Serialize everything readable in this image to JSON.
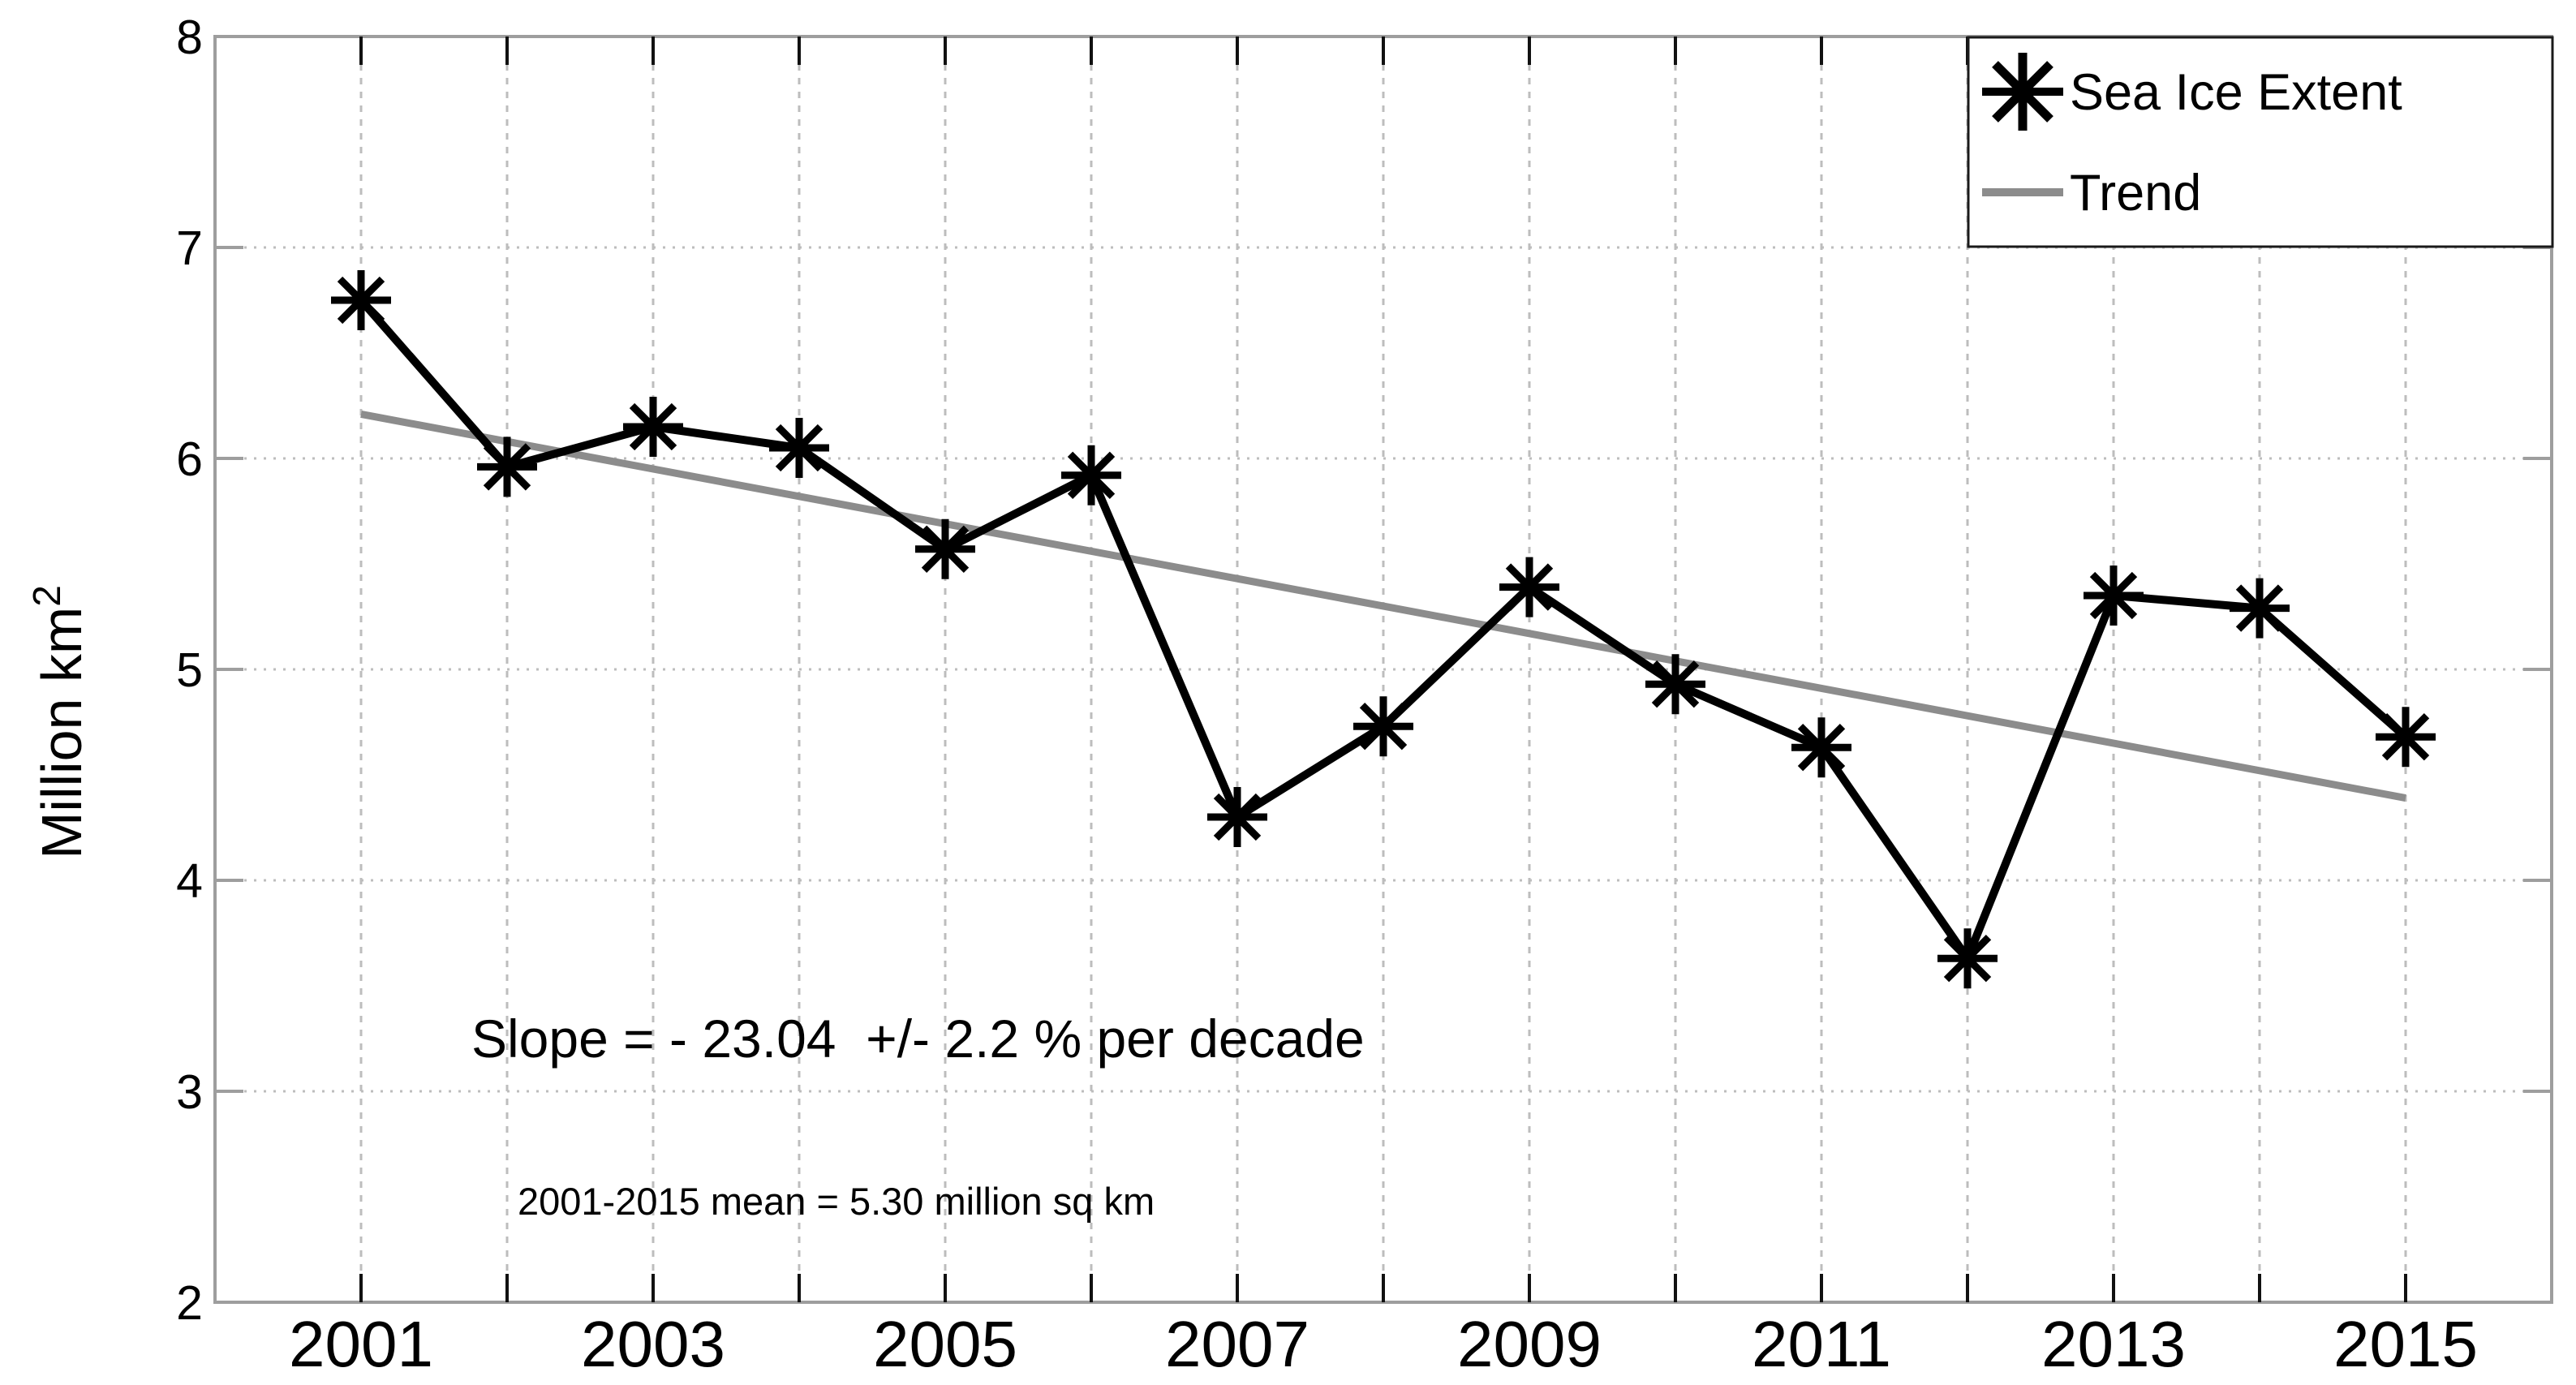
{
  "colors": {
    "background": "#ffffff",
    "axis_border": "#9e9e9e",
    "x_tick": "#111111",
    "y_tick": "#9e9e9e",
    "grid": "#bdbdbd",
    "data_line": "#000000",
    "trend_line": "#8c8c8c",
    "mean_text": "#4d4d4d",
    "legend_border": "#1a1a1a"
  },
  "chart_data": {
    "type": "line",
    "x": [
      2001,
      2002,
      2003,
      2004,
      2005,
      2006,
      2007,
      2008,
      2009,
      2010,
      2011,
      2012,
      2013,
      2014,
      2015
    ],
    "series": [
      {
        "name": "Sea Ice Extent",
        "values": [
          6.75,
          5.96,
          6.15,
          6.05,
          5.57,
          5.92,
          4.3,
          4.73,
          5.39,
          4.93,
          4.63,
          3.63,
          5.35,
          5.29,
          4.68
        ],
        "color": "#000000",
        "marker": "asterisk"
      },
      {
        "name": "Trend",
        "x": [
          2001,
          2015
        ],
        "values": [
          6.21,
          4.39
        ],
        "color": "#8c8c8c",
        "marker": "none"
      }
    ],
    "xlim": [
      2000,
      2016
    ],
    "ylim": [
      2,
      8
    ],
    "yticks": [
      2,
      3,
      4,
      5,
      6,
      7,
      8
    ],
    "xticks_minor_years": [
      2001,
      2002,
      2003,
      2004,
      2005,
      2006,
      2007,
      2008,
      2009,
      2010,
      2011,
      2012,
      2013,
      2014,
      2015
    ],
    "xtick_labels": [
      "2001",
      "2003",
      "2005",
      "2007",
      "2009",
      "2011",
      "2013",
      "2015"
    ],
    "xtick_label_years": [
      2001,
      2003,
      2005,
      2007,
      2009,
      2011,
      2013,
      2015
    ],
    "grid": true,
    "ylabel_base": "Million km",
    "ylabel_sup": "2",
    "legend_position": "top-right"
  },
  "annotations": {
    "slope_text": "Slope = - 23.04  +/- 2.2 % per decade",
    "mean_text": "2001-2015 mean = 5.30 million sq km"
  },
  "legend": {
    "items": [
      {
        "label": "Sea Ice Extent",
        "marker": "asterisk-marker-icon"
      },
      {
        "label": "Trend",
        "marker": "trend-line-sample"
      }
    ]
  }
}
